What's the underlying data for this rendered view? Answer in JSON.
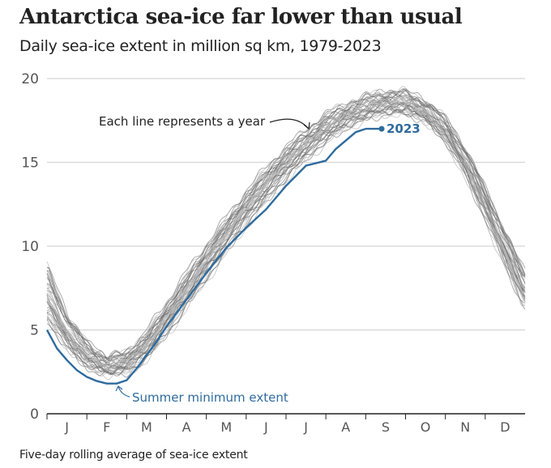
{
  "title": "Antarctica sea-ice far lower than usual",
  "subtitle": "Daily sea-ice extent in million sq km, 1979-2023",
  "footnote": "Five-day rolling average of sea-ice extent",
  "colors": {
    "highlight": "#2e6b9e",
    "historical": "#888888",
    "grid": "#d5d5d5",
    "axis": "#222222",
    "text": "#222222",
    "tick_text": "#555555"
  },
  "chart_data": {
    "type": "line",
    "title": "Antarctica sea-ice far lower than usual",
    "subtitle": "Daily sea-ice extent in million sq km, 1979-2023",
    "xlabel": "",
    "ylabel": "",
    "x_unit": "month of year",
    "categories": [
      "J",
      "F",
      "M",
      "A",
      "M",
      "J",
      "J",
      "A",
      "S",
      "O",
      "N",
      "D"
    ],
    "ylim": [
      0,
      20
    ],
    "yticks": [
      0,
      5,
      10,
      15,
      20
    ],
    "ytick_labels": [
      "0",
      "5",
      "10",
      "15",
      "20"
    ],
    "grid": true,
    "legend": "none",
    "historical_envelope": {
      "name": "1979-2022 (each line represents a year)",
      "x_month": [
        0,
        0.5,
        1.0,
        1.5,
        2.0,
        2.5,
        3.0,
        3.5,
        4.0,
        4.5,
        5.0,
        5.5,
        6.0,
        6.5,
        7.0,
        7.5,
        8.0,
        8.5,
        9.0,
        9.5,
        10.0,
        10.5,
        11.0,
        11.5,
        12.0
      ],
      "median": [
        7.0,
        4.8,
        3.4,
        2.8,
        3.0,
        4.0,
        5.6,
        7.3,
        9.0,
        10.6,
        12.2,
        13.6,
        14.9,
        16.0,
        17.0,
        17.7,
        18.2,
        18.5,
        18.5,
        18.0,
        16.9,
        15.0,
        12.5,
        9.8,
        7.2
      ],
      "spread": [
        2.0,
        1.3,
        0.9,
        0.7,
        0.7,
        0.8,
        0.9,
        1.0,
        1.0,
        1.0,
        1.0,
        1.0,
        1.0,
        0.9,
        0.9,
        0.8,
        0.8,
        0.8,
        0.8,
        0.8,
        0.8,
        0.9,
        1.0,
        1.1,
        1.3
      ],
      "series_count": 44
    },
    "series": [
      {
        "name": "2023",
        "x_month": [
          0,
          0.25,
          0.5,
          0.75,
          1.0,
          1.25,
          1.5,
          1.75,
          2.0,
          2.25,
          2.5,
          2.75,
          3.0,
          3.5,
          4.0,
          4.5,
          5.0,
          5.5,
          6.0,
          6.25,
          6.5,
          7.0,
          7.25,
          7.5,
          7.75,
          8.0,
          8.2,
          8.4
        ],
        "values": [
          5.0,
          3.9,
          3.2,
          2.6,
          2.2,
          1.95,
          1.8,
          1.8,
          2.0,
          2.7,
          3.5,
          4.3,
          5.2,
          6.8,
          8.4,
          9.9,
          11.1,
          12.2,
          13.6,
          14.2,
          14.8,
          15.1,
          15.8,
          16.3,
          16.8,
          17.0,
          17.0,
          17.0
        ]
      }
    ],
    "annotations": [
      {
        "text": "Each line represents a year",
        "target": "historical lines, around Aug"
      },
      {
        "text": "2023",
        "target": "end of 2023 line, early Sep, ~17"
      },
      {
        "text": "Summer minimum extent",
        "target": "2023 minimum, late Feb, ~1.8"
      }
    ]
  }
}
